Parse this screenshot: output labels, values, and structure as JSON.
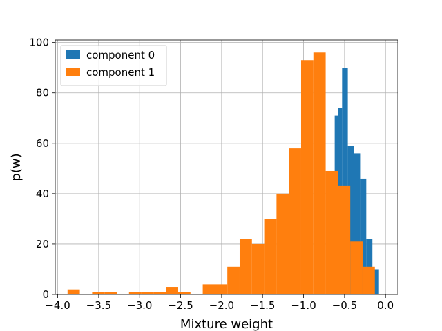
{
  "chart_data": {
    "type": "bar",
    "xlabel": "Mixture weight",
    "ylabel": "p(w)",
    "xlim": [
      -4.03,
      0.15
    ],
    "ylim": [
      0,
      101
    ],
    "xticks": [
      -4.0,
      -3.5,
      -3.0,
      -2.5,
      -2.0,
      -1.5,
      -1.0,
      -0.5,
      0.0
    ],
    "xtick_labels": [
      "−4.0",
      "−3.5",
      "−3.0",
      "−2.5",
      "−2.0",
      "−1.5",
      "−1.0",
      "−0.5",
      "0.0"
    ],
    "yticks": [
      0,
      20,
      40,
      60,
      80,
      100
    ],
    "ytick_labels": [
      "0",
      "20",
      "40",
      "60",
      "80",
      "100"
    ],
    "grid": true,
    "legend_position": "top-left",
    "series": [
      {
        "name": "component 0",
        "color": "#1f77b4",
        "bins": [
          {
            "x0": -0.62,
            "x1": -0.575,
            "y": 71
          },
          {
            "x0": -0.575,
            "x1": -0.53,
            "y": 74
          },
          {
            "x0": -0.53,
            "x1": -0.46,
            "y": 90
          },
          {
            "x0": -0.46,
            "x1": -0.385,
            "y": 59
          },
          {
            "x0": -0.385,
            "x1": -0.31,
            "y": 56
          },
          {
            "x0": -0.31,
            "x1": -0.235,
            "y": 46
          },
          {
            "x0": -0.235,
            "x1": -0.16,
            "y": 22
          },
          {
            "x0": -0.16,
            "x1": -0.08,
            "y": 10
          }
        ]
      },
      {
        "name": "component 1",
        "color": "#ff7f0e",
        "bins": [
          {
            "x0": -3.88,
            "x1": -3.73,
            "y": 2
          },
          {
            "x0": -3.73,
            "x1": -3.58,
            "y": 0
          },
          {
            "x0": -3.58,
            "x1": -3.43,
            "y": 1
          },
          {
            "x0": -3.43,
            "x1": -3.28,
            "y": 1
          },
          {
            "x0": -3.28,
            "x1": -3.13,
            "y": 0
          },
          {
            "x0": -3.13,
            "x1": -2.98,
            "y": 1
          },
          {
            "x0": -2.98,
            "x1": -2.83,
            "y": 1
          },
          {
            "x0": -2.83,
            "x1": -2.68,
            "y": 1
          },
          {
            "x0": -2.68,
            "x1": -2.53,
            "y": 3
          },
          {
            "x0": -2.53,
            "x1": -2.38,
            "y": 1
          },
          {
            "x0": -2.38,
            "x1": -2.23,
            "y": 0
          },
          {
            "x0": -2.23,
            "x1": -2.08,
            "y": 4
          },
          {
            "x0": -2.08,
            "x1": -1.93,
            "y": 4
          },
          {
            "x0": -1.93,
            "x1": -1.78,
            "y": 11
          },
          {
            "x0": -1.78,
            "x1": -1.63,
            "y": 22
          },
          {
            "x0": -1.63,
            "x1": -1.48,
            "y": 20
          },
          {
            "x0": -1.48,
            "x1": -1.33,
            "y": 30
          },
          {
            "x0": -1.33,
            "x1": -1.18,
            "y": 40
          },
          {
            "x0": -1.18,
            "x1": -1.03,
            "y": 58
          },
          {
            "x0": -1.03,
            "x1": -0.88,
            "y": 93
          },
          {
            "x0": -0.88,
            "x1": -0.73,
            "y": 96
          },
          {
            "x0": -0.73,
            "x1": -0.58,
            "y": 49
          },
          {
            "x0": -0.58,
            "x1": -0.43,
            "y": 43
          },
          {
            "x0": -0.43,
            "x1": -0.28,
            "y": 21
          },
          {
            "x0": -0.28,
            "x1": -0.13,
            "y": 11
          }
        ]
      }
    ]
  }
}
